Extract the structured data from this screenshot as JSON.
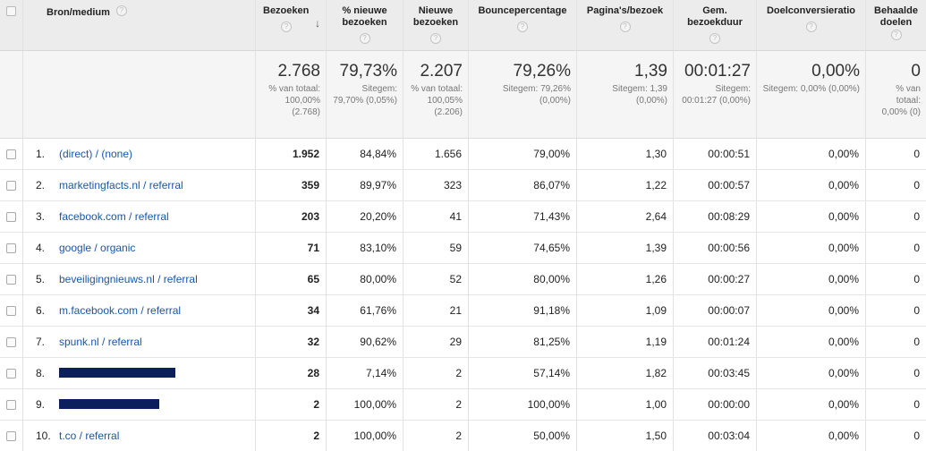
{
  "header": {
    "source": "Bron/medium",
    "visits": "Bezoeken",
    "pct_new": "% nieuwe bezoeken",
    "new_visits": "Nieuwe bezoeken",
    "bounce": "Bouncepercentage",
    "pages_per_visit": "Pagina's/bezoek",
    "avg_duration": "Gem. bezoekduur",
    "goal_conv": "Doelconversieratio",
    "goals_achieved": "Behaalde doelen",
    "help_glyph": "?",
    "sort_glyph": "↓"
  },
  "summary": {
    "visits": {
      "big": "2.768",
      "sub": "% van totaal: 100,00% (2.768)"
    },
    "pct_new": {
      "big": "79,73%",
      "sub": "Sitegem: 79,70% (0,05%)"
    },
    "new_visits": {
      "big": "2.207",
      "sub": "% van totaal: 100,05% (2.206)"
    },
    "bounce": {
      "big": "79,26%",
      "sub": "Sitegem: 79,26% (0,00%)"
    },
    "pages_per_visit": {
      "big": "1,39",
      "sub": "Sitegem: 1,39 (0,00%)"
    },
    "avg_duration": {
      "big": "00:01:27",
      "sub": "Sitegem: 00:01:27 (0,00%)"
    },
    "goal_conv": {
      "big": "0,00%",
      "sub": "Sitegem: 0,00% (0,00%)"
    },
    "goals_achieved": {
      "big": "0",
      "sub": "% van totaal: 0,00% (0)"
    }
  },
  "rows": [
    {
      "index": "1.",
      "source": "(direct) / (none)",
      "visits": "1.952",
      "pct_new": "84,84%",
      "new_visits": "1.656",
      "bounce": "79,00%",
      "ppv": "1,30",
      "duration": "00:00:51",
      "conv": "0,00%",
      "goals": "0"
    },
    {
      "index": "2.",
      "source": "marketingfacts.nl / referral",
      "visits": "359",
      "pct_new": "89,97%",
      "new_visits": "323",
      "bounce": "86,07%",
      "ppv": "1,22",
      "duration": "00:00:57",
      "conv": "0,00%",
      "goals": "0"
    },
    {
      "index": "3.",
      "source": "facebook.com / referral",
      "visits": "203",
      "pct_new": "20,20%",
      "new_visits": "41",
      "bounce": "71,43%",
      "ppv": "2,64",
      "duration": "00:08:29",
      "conv": "0,00%",
      "goals": "0"
    },
    {
      "index": "4.",
      "source": "google / organic",
      "visits": "71",
      "pct_new": "83,10%",
      "new_visits": "59",
      "bounce": "74,65%",
      "ppv": "1,39",
      "duration": "00:00:56",
      "conv": "0,00%",
      "goals": "0"
    },
    {
      "index": "5.",
      "source": "beveiligingnieuws.nl / referral",
      "visits": "65",
      "pct_new": "80,00%",
      "new_visits": "52",
      "bounce": "80,00%",
      "ppv": "1,26",
      "duration": "00:00:27",
      "conv": "0,00%",
      "goals": "0"
    },
    {
      "index": "6.",
      "source": "m.facebook.com / referral",
      "visits": "34",
      "pct_new": "61,76%",
      "new_visits": "21",
      "bounce": "91,18%",
      "ppv": "1,09",
      "duration": "00:00:07",
      "conv": "0,00%",
      "goals": "0"
    },
    {
      "index": "7.",
      "source": "spunk.nl / referral",
      "visits": "32",
      "pct_new": "90,62%",
      "new_visits": "29",
      "bounce": "81,25%",
      "ppv": "1,19",
      "duration": "00:01:24",
      "conv": "0,00%",
      "goals": "0"
    },
    {
      "index": "8.",
      "source": "",
      "visits": "28",
      "pct_new": "7,14%",
      "new_visits": "2",
      "bounce": "57,14%",
      "ppv": "1,82",
      "duration": "00:03:45",
      "conv": "0,00%",
      "goals": "0"
    },
    {
      "index": "9.",
      "source": "",
      "visits": "2",
      "pct_new": "100,00%",
      "new_visits": "2",
      "bounce": "100,00%",
      "ppv": "1,00",
      "duration": "00:00:00",
      "conv": "0,00%",
      "goals": "0"
    },
    {
      "index": "10.",
      "source": "t.co / referral",
      "visits": "2",
      "pct_new": "100,00%",
      "new_visits": "2",
      "bounce": "50,00%",
      "ppv": "1,50",
      "duration": "00:03:04",
      "conv": "0,00%",
      "goals": "0"
    }
  ],
  "colors": {
    "link": "#1a56a6",
    "redaction": "#0a1f5c"
  }
}
